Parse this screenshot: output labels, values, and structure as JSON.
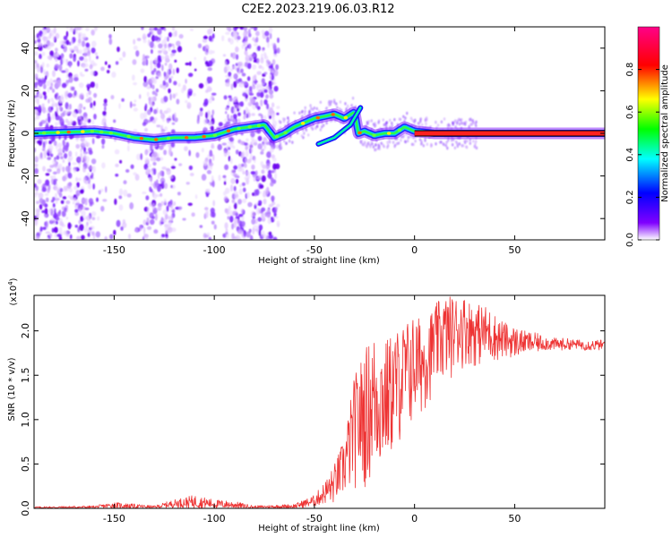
{
  "title": "C2E2.2023.219.06.03.R12",
  "chart_data": [
    {
      "type": "heatmap",
      "xlabel": "Height of straight line (km)",
      "ylabel": "Frequency (Hz)",
      "xlim": [
        -190,
        95
      ],
      "ylim": [
        -50,
        50
      ],
      "xticks": [
        -150,
        -100,
        -50,
        0,
        50
      ],
      "yticks": [
        -40,
        -20,
        0,
        20,
        40
      ],
      "colorbar": {
        "label": "Normalized spectral amplitude",
        "range": [
          0,
          1
        ],
        "ticks": [
          "0.0",
          "0.2",
          "0.4",
          "0.6",
          "0.8"
        ],
        "tick_values": [
          0,
          0.2,
          0.4,
          0.6,
          0.8
        ],
        "colormap": [
          "#ffffff",
          "#8000ff",
          "#0000ff",
          "#00ffff",
          "#00ff00",
          "#ffff00",
          "#ff0000",
          "#ff00aa"
        ]
      },
      "ridge": {
        "description_points_x": [
          -190,
          -160,
          -150,
          -140,
          -130,
          -120,
          -110,
          -100,
          -90,
          -75,
          -70,
          -65,
          -60,
          -55,
          -50,
          -45,
          -40,
          -35,
          -30,
          -28,
          -25,
          -20,
          -15,
          -10,
          -5,
          0,
          10,
          20,
          30,
          40,
          50,
          60,
          70,
          80,
          95
        ],
        "description_points_y": [
          0,
          1,
          0,
          -2,
          -3,
          -2,
          -2,
          -1,
          2,
          4,
          -2,
          0,
          3,
          5,
          7,
          8,
          9,
          7,
          10,
          0,
          1,
          -1,
          0,
          0,
          3,
          1,
          0,
          0,
          0,
          0,
          0,
          0,
          0,
          0,
          0
        ]
      },
      "noise_region_x": [
        -190,
        -68
      ],
      "background_gaps_x": [
        [
          -160,
          -135
        ],
        [
          -120,
          -105
        ],
        [
          -100,
          -95
        ]
      ]
    },
    {
      "type": "line",
      "xlabel": "Height of straight line (km)",
      "ylabel": "SNR (10 * v/v)",
      "y_multiplier": "(x10",
      "y_multiplier_exp": "4",
      "y_multiplier_close": ")",
      "xlim": [
        -190,
        95
      ],
      "ylim": [
        0,
        2.4
      ],
      "xticks": [
        -150,
        -100,
        -50,
        0,
        50
      ],
      "yticks": [
        "0.0",
        "0.5",
        "1.0",
        "1.5",
        "2.0"
      ],
      "ytick_values": [
        0,
        0.5,
        1.0,
        1.5,
        2.0
      ],
      "series": [
        {
          "color": "#ee3333",
          "envelope_x": [
            -190,
            -160,
            -150,
            -130,
            -120,
            -110,
            -100,
            -90,
            -80,
            -60,
            -50,
            -45,
            -40,
            -35,
            -30,
            -25,
            -20,
            -15,
            -10,
            -5,
            0,
            5,
            10,
            15,
            20,
            25,
            30,
            35,
            40,
            45,
            50,
            55,
            60,
            65,
            70,
            75,
            80,
            85,
            90,
            95
          ],
          "envelope_low": [
            0.0,
            0.0,
            0.0,
            0.0,
            0.01,
            0.0,
            0.0,
            0.0,
            0.0,
            0.0,
            0.02,
            0.05,
            0.05,
            0.1,
            0.2,
            0.2,
            0.3,
            0.4,
            0.6,
            0.8,
            0.9,
            1.1,
            1.3,
            1.4,
            1.5,
            1.6,
            1.6,
            1.6,
            1.65,
            1.7,
            1.7,
            1.75,
            1.75,
            1.78,
            1.78,
            1.78,
            1.8,
            1.78,
            1.78,
            1.78
          ],
          "envelope_high": [
            0.02,
            0.03,
            0.07,
            0.03,
            0.1,
            0.15,
            0.1,
            0.08,
            0.03,
            0.05,
            0.15,
            0.3,
            0.5,
            0.8,
            1.5,
            1.8,
            2.0,
            1.9,
            2.0,
            2.1,
            2.2,
            2.1,
            2.3,
            2.4,
            2.4,
            2.4,
            2.3,
            2.3,
            2.2,
            2.1,
            2.05,
            2.0,
            1.98,
            1.95,
            1.92,
            1.92,
            1.9,
            1.9,
            1.9,
            1.9
          ]
        }
      ]
    }
  ]
}
